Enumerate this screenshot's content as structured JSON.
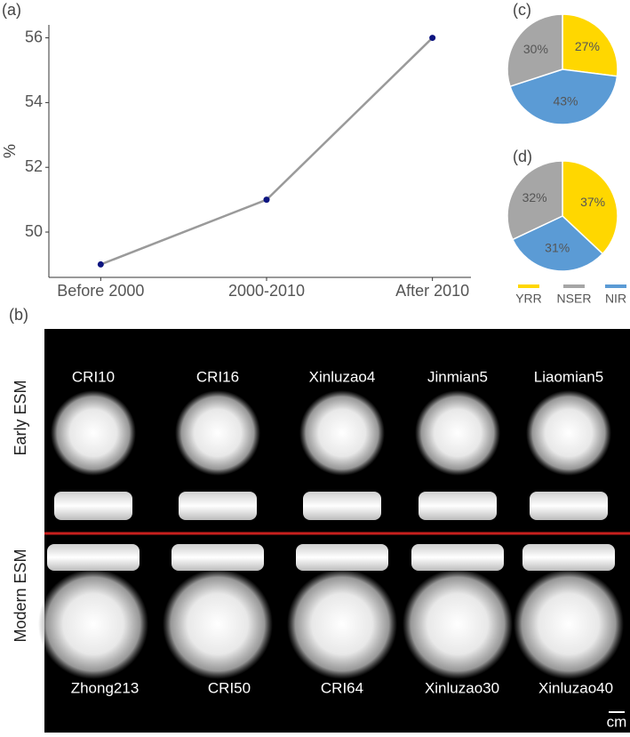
{
  "chart_data": [
    {
      "type": "line",
      "panel_label": "(a)",
      "ylabel": "%",
      "categories": [
        "Before 2000",
        "2000-2010",
        "After 2010"
      ],
      "values": [
        49,
        51,
        56
      ],
      "line_color": "#9a9a9a",
      "marker_color": "#0d1580",
      "ylim": [
        48.6,
        56.4
      ],
      "yticks": [
        50,
        52,
        54,
        56
      ],
      "grid": false
    },
    {
      "type": "pie",
      "panel_label": "(c)",
      "categories": [
        "YRR",
        "NSER",
        "NIR"
      ],
      "colors": [
        "#ffd700",
        "#a6a6a6",
        "#5b9bd5"
      ],
      "values": [
        27,
        30,
        43
      ],
      "value_labels": [
        "27%",
        "30%",
        "43%"
      ]
    },
    {
      "type": "pie",
      "panel_label": "(d)",
      "categories": [
        "YRR",
        "NSER",
        "NIR"
      ],
      "colors": [
        "#ffd700",
        "#a6a6a6",
        "#5b9bd5"
      ],
      "values": [
        37,
        32,
        31
      ],
      "value_labels": [
        "37%",
        "32%",
        "31%"
      ],
      "legend": "bottom"
    }
  ],
  "photo_panel": {
    "panel_label": "(b)",
    "row_labels": [
      "Early ESM",
      "Modern ESM"
    ],
    "top_names": [
      "CRI10",
      "CRI16",
      "Xinluzao4",
      "Jinmian5",
      "Liaomian5"
    ],
    "bottom_names": [
      "Zhong213",
      "CRI50",
      "CRI64",
      "Xinluzao30",
      "Xinluzao40"
    ],
    "scale_label": "cm"
  }
}
